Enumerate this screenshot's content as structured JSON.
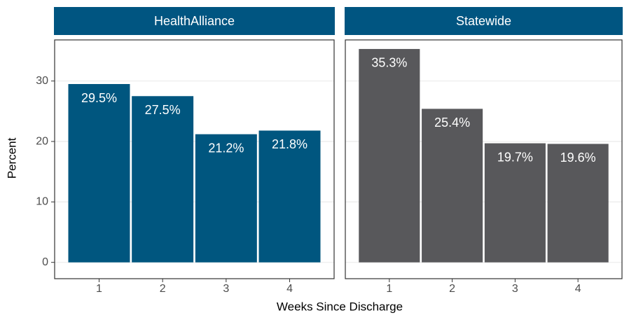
{
  "chart_data": [
    {
      "type": "bar",
      "title": "HealthAlliance",
      "categories": [
        "1",
        "2",
        "3",
        "4"
      ],
      "values": [
        29.5,
        27.5,
        21.2,
        21.8
      ],
      "value_labels": [
        "29.5%",
        "27.5%",
        "21.2%",
        "21.8%"
      ],
      "color": "#00567f",
      "ylim": [
        -2.7,
        36.8
      ],
      "yticks": [
        0,
        10,
        20,
        30
      ],
      "grid": true
    },
    {
      "type": "bar",
      "title": "Statewide",
      "categories": [
        "1",
        "2",
        "3",
        "4"
      ],
      "values": [
        35.3,
        25.4,
        19.7,
        19.6
      ],
      "value_labels": [
        "35.3%",
        "25.4%",
        "19.7%",
        "19.6%"
      ],
      "color": "#58585b",
      "ylim": [
        -2.7,
        36.8
      ],
      "yticks": [
        0,
        10,
        20,
        30
      ],
      "grid": true
    }
  ],
  "x_label": "Weeks Since Discharge",
  "y_label": "Percent"
}
